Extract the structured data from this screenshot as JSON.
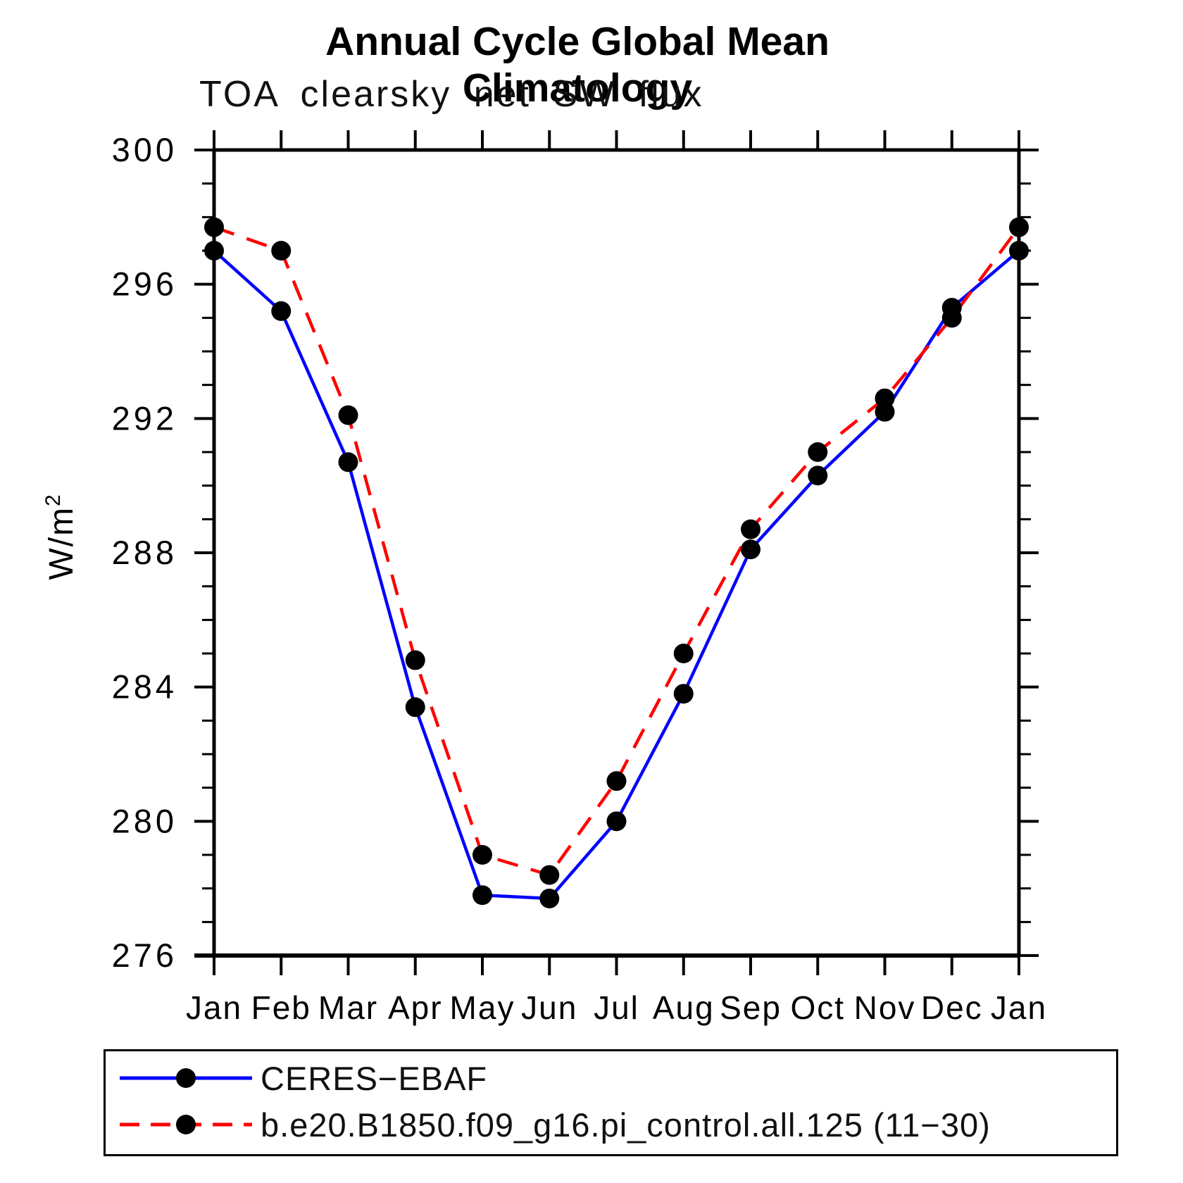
{
  "chart_data": {
    "type": "line",
    "title": "Annual Cycle Global Mean Climatology",
    "subtitle": "TOA clearsky net SW flux",
    "ylabel": "W/m²",
    "xlabel": "",
    "categories": [
      "Jan",
      "Feb",
      "Mar",
      "Apr",
      "May",
      "Jun",
      "Jul",
      "Aug",
      "Sep",
      "Oct",
      "Nov",
      "Dec",
      "Jan"
    ],
    "ylim": [
      276,
      300
    ],
    "ytick_major": [
      300,
      296,
      292,
      288,
      284,
      280,
      276
    ],
    "ytick_minor_step": 1,
    "grid": false,
    "legend_position": "bottom-left-box",
    "axis_color": "#000000",
    "marker_color": "#000000",
    "series": [
      {
        "name": "CERES−EBAF",
        "color": "#0000ff",
        "line_style": "solid",
        "marker": "filled-circle",
        "values": [
          297.0,
          295.2,
          290.7,
          283.4,
          277.8,
          277.7,
          280.0,
          283.8,
          288.1,
          290.3,
          292.2,
          295.3,
          297.0
        ]
      },
      {
        "name": "b.e20.B1850.f09_g16.pi_control.all.125 (11−30)",
        "color": "#ff0000",
        "line_style": "dashed",
        "marker": "filled-circle",
        "values": [
          297.7,
          297.0,
          292.1,
          284.8,
          279.0,
          278.4,
          281.2,
          285.0,
          288.7,
          291.0,
          292.6,
          295.0,
          297.7
        ]
      }
    ]
  }
}
